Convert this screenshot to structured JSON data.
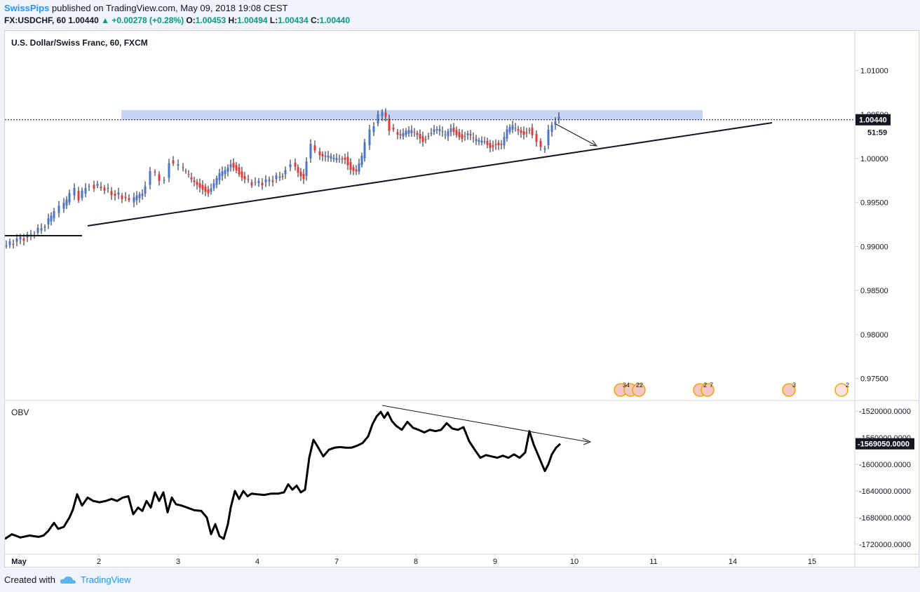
{
  "header": {
    "author": "SwissPips",
    "published_text": "published on TradingView.com, May 09, 2018 19:08 CEST",
    "symbol": "FX:USDCHF, 60",
    "last": "1.00440",
    "change": "+0.00278 (+0.28%)",
    "o_label": "O:",
    "o_value": "1.00453",
    "h_label": "H:",
    "h_value": "1.00494",
    "l_label": "L:",
    "l_value": "1.00434",
    "c_label": "C:",
    "c_value": "1.00440"
  },
  "main_pane": {
    "title": "U.S. Dollar/Swiss Franc, 60, FXCM",
    "price_ticks": [
      "1.01000",
      "1.00500",
      "1.00000",
      "0.99500",
      "0.99000",
      "0.98500",
      "0.98000",
      "0.97500"
    ],
    "last_price_label": "1.00440",
    "countdown_label": "51:59",
    "event_badges": [
      "34",
      "22",
      "2",
      "7",
      "3",
      "2"
    ]
  },
  "obv_pane": {
    "title": "OBV",
    "ticks": [
      "-1520000.0000",
      "-1560000.0000",
      "-1600000.0000",
      "-1640000.0000",
      "-1680000.0000",
      "-1720000.0000"
    ],
    "last_label": "-1569050.0000"
  },
  "time_axis": {
    "labels": [
      "May",
      "2",
      "3",
      "4",
      "7",
      "8",
      "9",
      "10",
      "11",
      "14",
      "15"
    ]
  },
  "footer": {
    "created_with": "Created with",
    "brand": "TradingView"
  },
  "colors": {
    "up": "#4a76c9",
    "down": "#e53935",
    "accent": "#2196f3",
    "zone": "#c7d4f2"
  },
  "chart_data": {
    "type": "candlestick",
    "title": "U.S. Dollar/Swiss Franc, 60, FXCM",
    "ylim": [
      0.9725,
      1.0145
    ],
    "last_price": 1.0044,
    "resistance_zone": [
      1.0044,
      1.0055
    ],
    "close_path": [
      [
        0,
        0.99
      ],
      [
        10,
        0.9903
      ],
      [
        20,
        0.9908
      ],
      [
        30,
        0.991
      ],
      [
        40,
        0.9913
      ],
      [
        50,
        0.9918
      ],
      [
        60,
        0.9925
      ],
      [
        68,
        0.9932
      ],
      [
        75,
        0.9938
      ],
      [
        82,
        0.9943
      ],
      [
        90,
        0.995
      ],
      [
        97,
        0.9958
      ],
      [
        103,
        0.9963
      ],
      [
        108,
        0.9955
      ],
      [
        113,
        0.996
      ],
      [
        118,
        0.9968
      ],
      [
        125,
        0.997
      ],
      [
        135,
        0.9968
      ],
      [
        145,
        0.9966
      ],
      [
        155,
        0.996
      ],
      [
        165,
        0.9958
      ],
      [
        175,
        0.9955
      ],
      [
        182,
        0.995
      ],
      [
        190,
        0.9955
      ],
      [
        198,
        0.996
      ],
      [
        205,
        0.997
      ],
      [
        212,
        0.9985
      ],
      [
        218,
        0.9982
      ],
      [
        225,
        0.9975
      ],
      [
        232,
        0.9978
      ],
      [
        238,
        0.9998
      ],
      [
        245,
        0.9992
      ],
      [
        252,
        0.999
      ],
      [
        260,
        0.9982
      ],
      [
        268,
        0.9975
      ],
      [
        276,
        0.9972
      ],
      [
        284,
        0.9968
      ],
      [
        292,
        0.9962
      ],
      [
        300,
        0.997
      ],
      [
        308,
        0.998
      ],
      [
        316,
        0.9985
      ],
      [
        324,
        0.9995
      ],
      [
        332,
        0.999
      ],
      [
        340,
        0.998
      ],
      [
        350,
        0.9973
      ],
      [
        360,
        0.9972
      ],
      [
        370,
        0.9973
      ],
      [
        380,
        0.9975
      ],
      [
        390,
        0.9978
      ],
      [
        398,
        0.9982
      ],
      [
        405,
        0.999
      ],
      [
        412,
        0.9995
      ],
      [
        420,
        0.9985
      ],
      [
        428,
        0.998
      ],
      [
        434,
        1.0
      ],
      [
        440,
        1.0015
      ],
      [
        447,
        1.0008
      ],
      [
        455,
        1.0002
      ],
      [
        463,
        1.0
      ],
      [
        471,
        0.9998
      ],
      [
        479,
        1.0
      ],
      [
        487,
        1.0002
      ],
      [
        495,
        0.999
      ],
      [
        503,
        0.9985
      ],
      [
        511,
        1.0
      ],
      [
        518,
        1.0015
      ],
      [
        524,
        1.003
      ],
      [
        530,
        1.004
      ],
      [
        536,
        1.0048
      ],
      [
        541,
        1.0052
      ],
      [
        546,
        1.0045
      ],
      [
        552,
        1.0035
      ],
      [
        558,
        1.003
      ],
      [
        566,
        1.0025
      ],
      [
        574,
        1.0028
      ],
      [
        582,
        1.003
      ],
      [
        590,
        1.0028
      ],
      [
        598,
        1.0022
      ],
      [
        606,
        1.0028
      ],
      [
        614,
        1.0032
      ],
      [
        622,
        1.003
      ],
      [
        630,
        1.0025
      ],
      [
        638,
        1.0035
      ],
      [
        646,
        1.003
      ],
      [
        654,
        1.0025
      ],
      [
        662,
        1.0028
      ],
      [
        670,
        1.002
      ],
      [
        678,
        1.0018
      ],
      [
        686,
        1.002
      ],
      [
        694,
        1.0015
      ],
      [
        702,
        1.0018
      ],
      [
        710,
        1.0015
      ],
      [
        718,
        1.003
      ],
      [
        726,
        1.0035
      ],
      [
        734,
        1.0032
      ],
      [
        742,
        1.003
      ],
      [
        750,
        1.0035
      ],
      [
        756,
        1.0028
      ],
      [
        762,
        1.002
      ],
      [
        768,
        1.001
      ],
      [
        773,
        1.0015
      ],
      [
        778,
        1.003
      ],
      [
        783,
        1.0038
      ],
      [
        788,
        1.0045
      ],
      [
        792,
        1.0044
      ]
    ],
    "obv": {
      "name": "OBV",
      "ylim": [
        -1735000,
        -1505000
      ],
      "last": -1569050,
      "points": [
        [
          0,
          -1712000
        ],
        [
          10,
          -1705000
        ],
        [
          22,
          -1710000
        ],
        [
          35,
          -1707000
        ],
        [
          48,
          -1709000
        ],
        [
          55,
          -1707000
        ],
        [
          62,
          -1700000
        ],
        [
          70,
          -1688000
        ],
        [
          76,
          -1697000
        ],
        [
          84,
          -1694000
        ],
        [
          92,
          -1680000
        ],
        [
          97,
          -1668000
        ],
        [
          103,
          -1645000
        ],
        [
          110,
          -1662000
        ],
        [
          118,
          -1650000
        ],
        [
          126,
          -1655000
        ],
        [
          135,
          -1657000
        ],
        [
          144,
          -1655000
        ],
        [
          152,
          -1652000
        ],
        [
          160,
          -1655000
        ],
        [
          168,
          -1650000
        ],
        [
          176,
          -1648000
        ],
        [
          183,
          -1675000
        ],
        [
          190,
          -1665000
        ],
        [
          196,
          -1670000
        ],
        [
          202,
          -1655000
        ],
        [
          208,
          -1665000
        ],
        [
          214,
          -1642000
        ],
        [
          220,
          -1655000
        ],
        [
          226,
          -1642000
        ],
        [
          232,
          -1672000
        ],
        [
          238,
          -1650000
        ],
        [
          244,
          -1660000
        ],
        [
          252,
          -1662000
        ],
        [
          260,
          -1665000
        ],
        [
          270,
          -1669000
        ],
        [
          280,
          -1670000
        ],
        [
          288,
          -1680000
        ],
        [
          294,
          -1705000
        ],
        [
          300,
          -1690000
        ],
        [
          306,
          -1708000
        ],
        [
          312,
          -1712000
        ],
        [
          318,
          -1690000
        ],
        [
          322,
          -1665000
        ],
        [
          328,
          -1640000
        ],
        [
          334,
          -1652000
        ],
        [
          340,
          -1640000
        ],
        [
          346,
          -1648000
        ],
        [
          352,
          -1644000
        ],
        [
          360,
          -1645000
        ],
        [
          370,
          -1646000
        ],
        [
          380,
          -1644000
        ],
        [
          390,
          -1644000
        ],
        [
          398,
          -1642000
        ],
        [
          404,
          -1630000
        ],
        [
          410,
          -1638000
        ],
        [
          416,
          -1632000
        ],
        [
          422,
          -1642000
        ],
        [
          428,
          -1638000
        ],
        [
          434,
          -1590000
        ],
        [
          440,
          -1563000
        ],
        [
          447,
          -1575000
        ],
        [
          454,
          -1588000
        ],
        [
          462,
          -1578000
        ],
        [
          470,
          -1575000
        ],
        [
          478,
          -1574000
        ],
        [
          486,
          -1575000
        ],
        [
          494,
          -1575000
        ],
        [
          502,
          -1572000
        ],
        [
          510,
          -1568000
        ],
        [
          518,
          -1558000
        ],
        [
          524,
          -1540000
        ],
        [
          530,
          -1528000
        ],
        [
          536,
          -1521000
        ],
        [
          541,
          -1530000
        ],
        [
          546,
          -1522000
        ],
        [
          552,
          -1535000
        ],
        [
          558,
          -1542000
        ],
        [
          566,
          -1548000
        ],
        [
          574,
          -1536000
        ],
        [
          582,
          -1545000
        ],
        [
          590,
          -1548000
        ],
        [
          598,
          -1552000
        ],
        [
          606,
          -1548000
        ],
        [
          614,
          -1550000
        ],
        [
          622,
          -1548000
        ],
        [
          630,
          -1538000
        ],
        [
          638,
          -1546000
        ],
        [
          646,
          -1548000
        ],
        [
          654,
          -1544000
        ],
        [
          662,
          -1565000
        ],
        [
          670,
          -1578000
        ],
        [
          678,
          -1590000
        ],
        [
          686,
          -1586000
        ],
        [
          694,
          -1588000
        ],
        [
          702,
          -1590000
        ],
        [
          710,
          -1587000
        ],
        [
          718,
          -1590000
        ],
        [
          726,
          -1585000
        ],
        [
          734,
          -1590000
        ],
        [
          742,
          -1582000
        ],
        [
          748,
          -1550000
        ],
        [
          754,
          -1570000
        ],
        [
          760,
          -1585000
        ],
        [
          766,
          -1600000
        ],
        [
          770,
          -1610000
        ],
        [
          775,
          -1600000
        ],
        [
          780,
          -1585000
        ],
        [
          786,
          -1575000
        ],
        [
          792,
          -1569050
        ]
      ]
    }
  }
}
